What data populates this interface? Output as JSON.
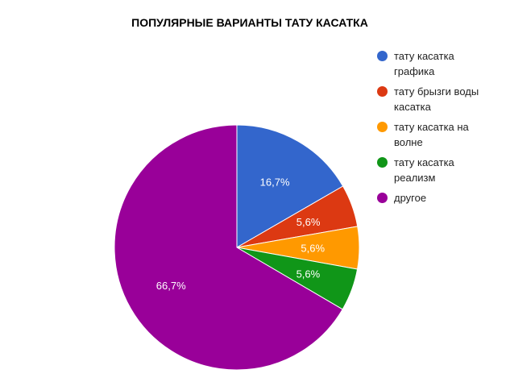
{
  "chart_data": {
    "type": "pie",
    "title": "ПОПУЛЯРНЫЕ ВАРИАНТЫ ТАТУ КАСАТКА",
    "categories": [
      "тату касатка графика",
      "тату брызги воды касатка",
      "тату касатка на волне",
      "тату касатка реализм",
      "другое"
    ],
    "values": [
      16.7,
      5.6,
      5.6,
      5.6,
      66.7
    ],
    "labels": [
      "16,7%",
      "5,6%",
      "5,6%",
      "5,6%",
      "66,7%"
    ],
    "colors": [
      "#3366cc",
      "#dc3912",
      "#ff9900",
      "#109618",
      "#990099"
    ],
    "legend_position": "right",
    "start_angle": "top, clockwise"
  }
}
